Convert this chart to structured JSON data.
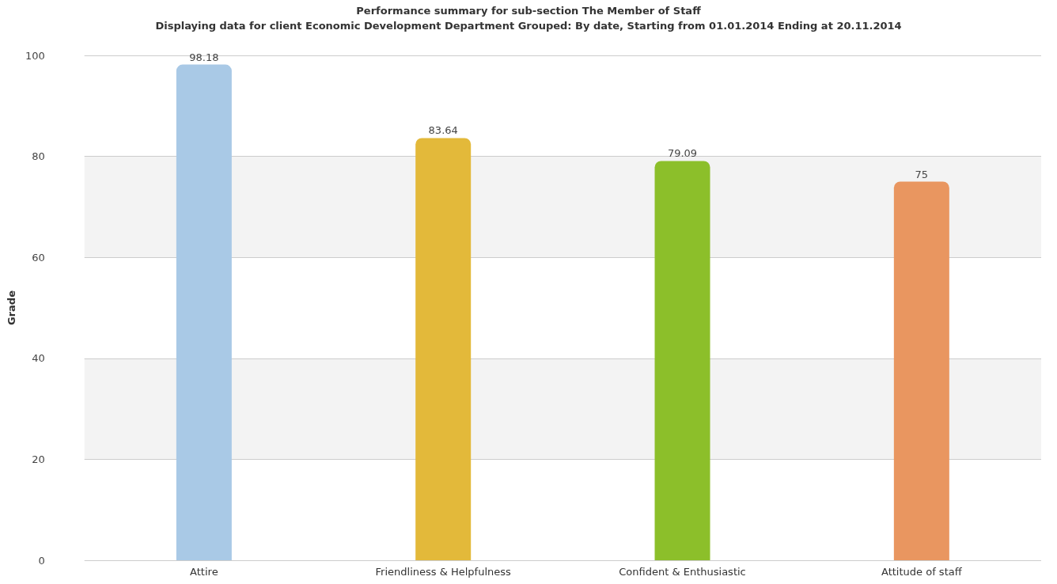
{
  "chart_data": {
    "type": "bar",
    "title": "Performance summary for sub-section The Member of Staff",
    "subtitle": "Displaying data for client Economic Development Department Grouped: By date, Starting from 01.01.2014 Ending at 20.11.2014",
    "ylabel": "Grade",
    "categories": [
      "Attire",
      "Friendliness & Helpfulness",
      "Confident & Enthusiastic",
      "Attitude of staff"
    ],
    "values": [
      98.18,
      83.64,
      79.09,
      75
    ],
    "colors": [
      "#a9c9e6",
      "#e3b93a",
      "#8cbf2a",
      "#e99660"
    ],
    "ylim": [
      0,
      100
    ],
    "yticks": [
      0,
      20,
      40,
      60,
      80,
      100
    ],
    "grid": "y",
    "data_labels": true
  }
}
